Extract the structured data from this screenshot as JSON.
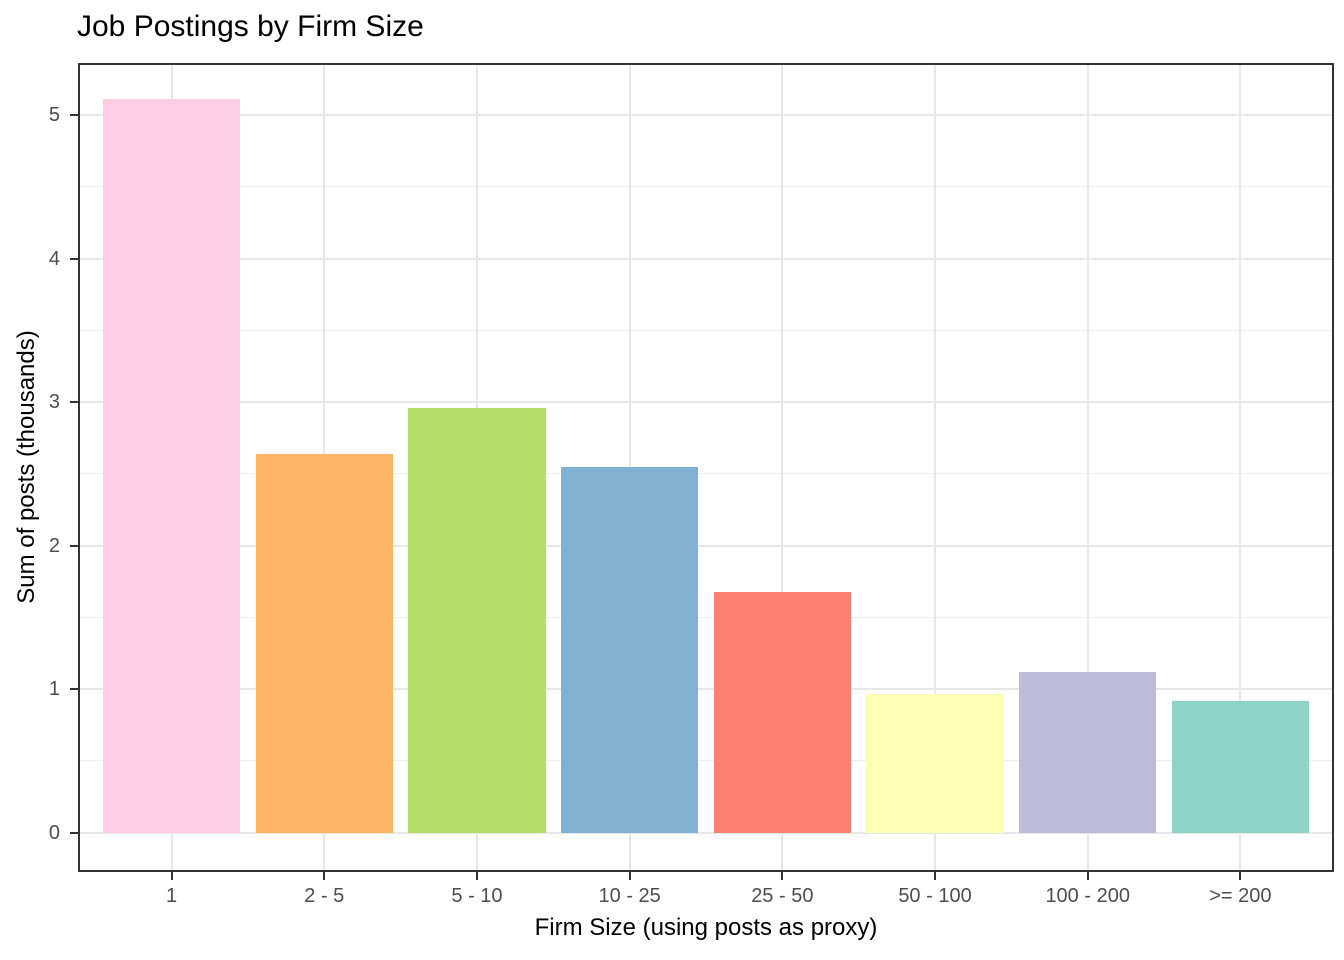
{
  "title": "Job Postings by Firm Size",
  "chart_data": {
    "type": "bar",
    "title": "Job Postings by Firm Size",
    "xlabel": "Firm Size (using posts as proxy)",
    "ylabel": "Sum of posts (thousands)",
    "categories": [
      "1",
      "2 - 5",
      "5 - 10",
      "10 - 25",
      "25 - 50",
      "50 - 100",
      "100 - 200",
      ">= 200"
    ],
    "values": [
      5.11,
      2.64,
      2.96,
      2.55,
      1.68,
      0.97,
      1.12,
      0.92
    ],
    "bar_colors": [
      "#FCCDE5",
      "#FDB462",
      "#B3DE69",
      "#80B1D3",
      "#FB8072",
      "#FFFFB3",
      "#BEBADA",
      "#8DD3C7"
    ],
    "ylim": [
      -0.26,
      5.35
    ],
    "yticks": [
      0,
      1,
      2,
      3,
      4,
      5
    ],
    "yticks_minor": [
      0.5,
      1.5,
      2.5,
      3.5,
      4.5
    ],
    "bar_width_fraction": 0.9,
    "grid": "horizontal major+minor, vertical major at category centers",
    "legend": "none"
  },
  "style": {
    "background": "#FFFFFF",
    "panel_border_color": "#333333",
    "grid_major_color": "#E7E7E7",
    "grid_minor_color": "#F0F0F0",
    "tick_mark_color": "#333333",
    "tick_label_color": "#4D4D4D",
    "title_color": "#000000"
  }
}
